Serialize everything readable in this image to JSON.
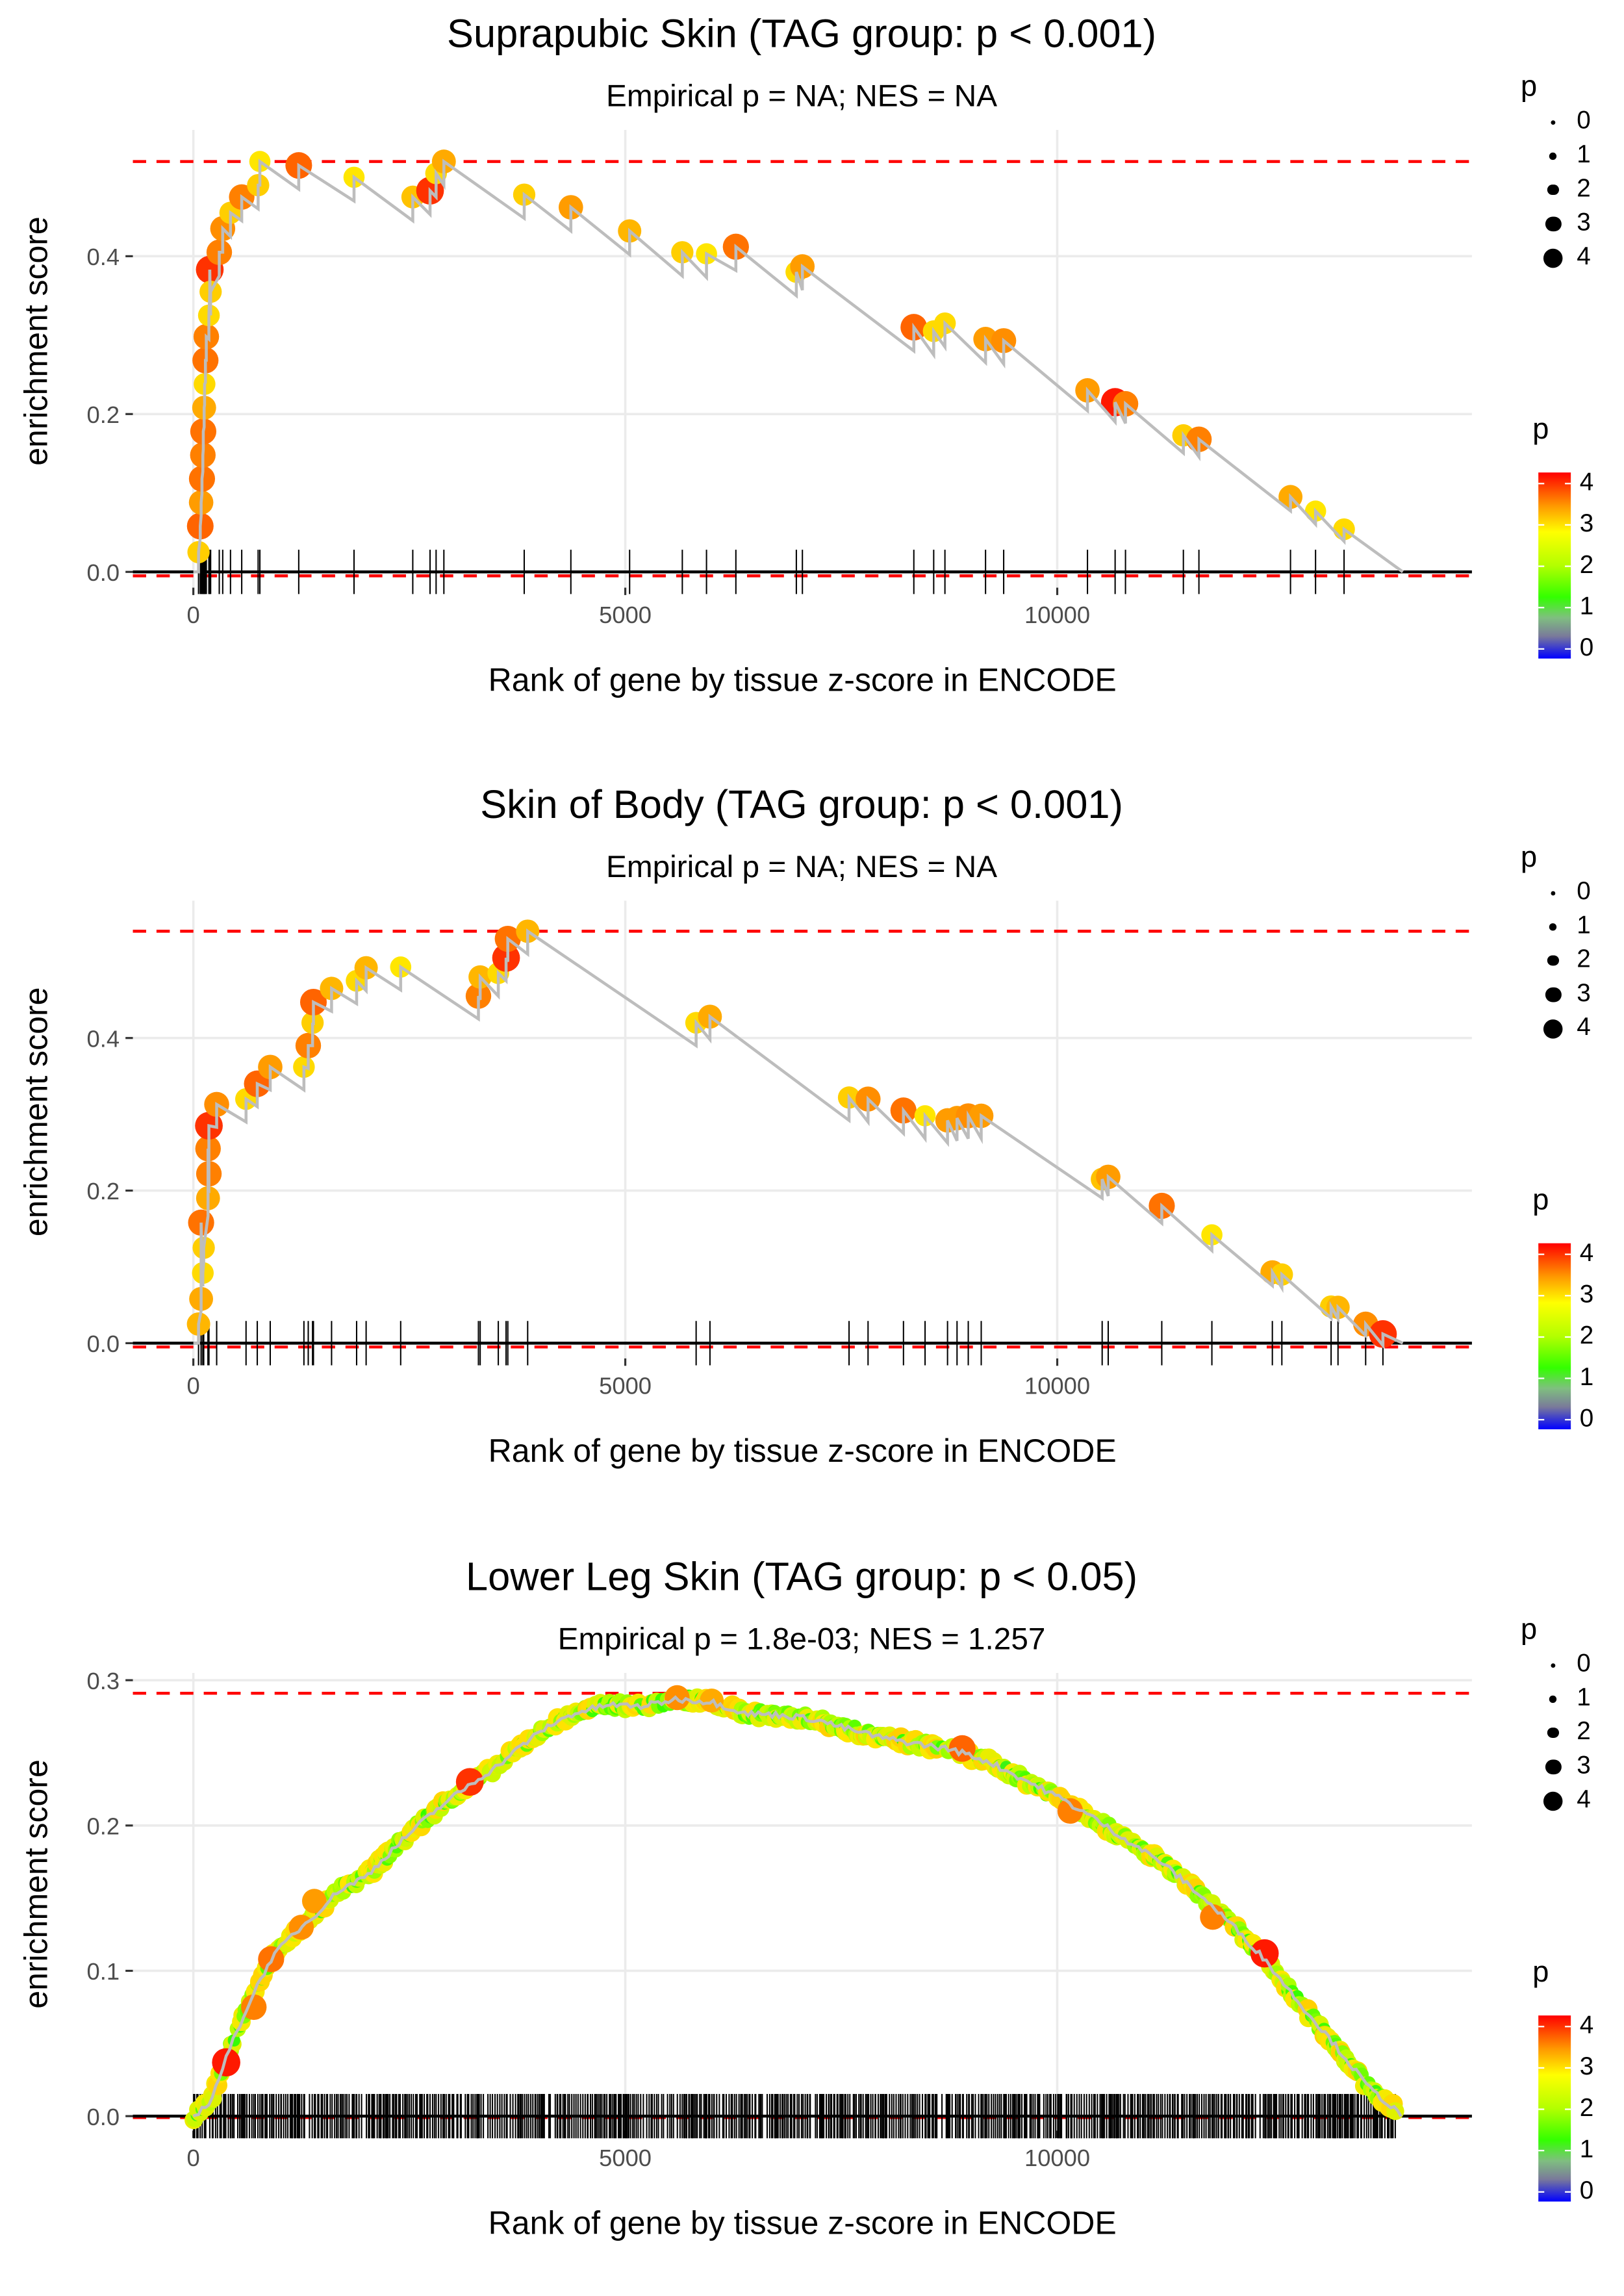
{
  "chart_data": [
    {
      "type": "line",
      "title": "Suprapubic Skin (TAG group: p < 0.001)",
      "subtitle": "Empirical p = NA; NES = NA",
      "xlabel": "Rank of gene by tissue z-score in ENCODE",
      "ylabel": "enrichment score",
      "xlim": [
        -700,
        14800
      ],
      "ylim": [
        -0.02,
        0.56
      ],
      "x_ticks": [
        0,
        5000,
        10000
      ],
      "x_tick_labels": [
        "0",
        "5000",
        "10000"
      ],
      "y_ticks": [
        0.0,
        0.2,
        0.4
      ],
      "y_tick_labels": [
        "0.0",
        "0.2",
        "0.4"
      ],
      "grid": true,
      "max_es_line": 0.52,
      "min_es_line": -0.005,
      "end_rank": 14000,
      "hits": [
        {
          "x": 60,
          "y": 0.025,
          "p": 3.0
        },
        {
          "x": 80,
          "y": 0.058,
          "p": 3.8
        },
        {
          "x": 90,
          "y": 0.088,
          "p": 3.4
        },
        {
          "x": 100,
          "y": 0.118,
          "p": 3.7
        },
        {
          "x": 110,
          "y": 0.148,
          "p": 3.6
        },
        {
          "x": 115,
          "y": 0.178,
          "p": 3.7
        },
        {
          "x": 125,
          "y": 0.208,
          "p": 3.3
        },
        {
          "x": 130,
          "y": 0.238,
          "p": 2.9
        },
        {
          "x": 140,
          "y": 0.268,
          "p": 3.7
        },
        {
          "x": 150,
          "y": 0.298,
          "p": 3.6
        },
        {
          "x": 180,
          "y": 0.325,
          "p": 2.9
        },
        {
          "x": 200,
          "y": 0.355,
          "p": 3.0
        },
        {
          "x": 190,
          "y": 0.383,
          "p": 4.0
        },
        {
          "x": 300,
          "y": 0.405,
          "p": 3.6
        },
        {
          "x": 340,
          "y": 0.435,
          "p": 3.5
        },
        {
          "x": 430,
          "y": 0.455,
          "p": 3.0
        },
        {
          "x": 560,
          "y": 0.475,
          "p": 3.6
        },
        {
          "x": 750,
          "y": 0.49,
          "p": 3.0
        },
        {
          "x": 770,
          "y": 0.52,
          "p": 2.8
        },
        {
          "x": 1220,
          "y": 0.515,
          "p": 3.8
        },
        {
          "x": 1860,
          "y": 0.5,
          "p": 2.8
        },
        {
          "x": 2540,
          "y": 0.475,
          "p": 3.1
        },
        {
          "x": 2740,
          "y": 0.483,
          "p": 4.0
        },
        {
          "x": 2810,
          "y": 0.505,
          "p": 2.9
        },
        {
          "x": 2900,
          "y": 0.52,
          "p": 3.3
        },
        {
          "x": 3830,
          "y": 0.478,
          "p": 3.0
        },
        {
          "x": 4370,
          "y": 0.462,
          "p": 3.4
        },
        {
          "x": 5050,
          "y": 0.432,
          "p": 3.2
        },
        {
          "x": 5660,
          "y": 0.405,
          "p": 3.0
        },
        {
          "x": 5940,
          "y": 0.403,
          "p": 2.8
        },
        {
          "x": 6280,
          "y": 0.412,
          "p": 3.7
        },
        {
          "x": 6980,
          "y": 0.38,
          "p": 2.9
        },
        {
          "x": 7050,
          "y": 0.387,
          "p": 3.4
        },
        {
          "x": 8340,
          "y": 0.31,
          "p": 3.8
        },
        {
          "x": 8570,
          "y": 0.305,
          "p": 2.9
        },
        {
          "x": 8700,
          "y": 0.315,
          "p": 2.9
        },
        {
          "x": 9170,
          "y": 0.295,
          "p": 3.4
        },
        {
          "x": 9380,
          "y": 0.293,
          "p": 3.5
        },
        {
          "x": 10350,
          "y": 0.23,
          "p": 3.4
        },
        {
          "x": 10670,
          "y": 0.215,
          "p": 4.1
        },
        {
          "x": 10790,
          "y": 0.213,
          "p": 3.6
        },
        {
          "x": 11460,
          "y": 0.173,
          "p": 3.0
        },
        {
          "x": 11640,
          "y": 0.168,
          "p": 3.6
        },
        {
          "x": 12700,
          "y": 0.095,
          "p": 3.3
        },
        {
          "x": 12990,
          "y": 0.077,
          "p": 2.8
        },
        {
          "x": 13320,
          "y": 0.054,
          "p": 2.9
        }
      ]
    },
    {
      "type": "line",
      "title": "Skin of Body (TAG group: p < 0.001)",
      "subtitle": "Empirical p = NA; NES = NA",
      "xlabel": "Rank of gene by tissue z-score in ENCODE",
      "ylabel": "enrichment score",
      "xlim": [
        -700,
        14800
      ],
      "ylim": [
        -0.02,
        0.58
      ],
      "x_ticks": [
        0,
        5000,
        10000
      ],
      "x_tick_labels": [
        "0",
        "5000",
        "10000"
      ],
      "y_ticks": [
        0.0,
        0.2,
        0.4
      ],
      "y_tick_labels": [
        "0.0",
        "0.2",
        "0.4"
      ],
      "grid": true,
      "max_es_line": 0.54,
      "min_es_line": -0.005,
      "end_rank": 14000,
      "hits": [
        {
          "x": 60,
          "y": 0.025,
          "p": 3.2
        },
        {
          "x": 90,
          "y": 0.058,
          "p": 3.3
        },
        {
          "x": 110,
          "y": 0.092,
          "p": 2.9
        },
        {
          "x": 120,
          "y": 0.125,
          "p": 3.0
        },
        {
          "x": 90,
          "y": 0.158,
          "p": 3.7
        },
        {
          "x": 170,
          "y": 0.19,
          "p": 3.3
        },
        {
          "x": 180,
          "y": 0.222,
          "p": 3.6
        },
        {
          "x": 170,
          "y": 0.255,
          "p": 3.6
        },
        {
          "x": 180,
          "y": 0.285,
          "p": 4.0
        },
        {
          "x": 270,
          "y": 0.313,
          "p": 3.5
        },
        {
          "x": 610,
          "y": 0.32,
          "p": 2.9
        },
        {
          "x": 740,
          "y": 0.34,
          "p": 3.8
        },
        {
          "x": 890,
          "y": 0.362,
          "p": 3.4
        },
        {
          "x": 1280,
          "y": 0.362,
          "p": 2.9
        },
        {
          "x": 1330,
          "y": 0.39,
          "p": 3.6
        },
        {
          "x": 1380,
          "y": 0.42,
          "p": 3.0
        },
        {
          "x": 1390,
          "y": 0.447,
          "p": 3.8
        },
        {
          "x": 1600,
          "y": 0.465,
          "p": 3.2
        },
        {
          "x": 1890,
          "y": 0.475,
          "p": 2.9
        },
        {
          "x": 2000,
          "y": 0.492,
          "p": 3.2
        },
        {
          "x": 2400,
          "y": 0.493,
          "p": 2.8
        },
        {
          "x": 3300,
          "y": 0.455,
          "p": 3.6
        },
        {
          "x": 3320,
          "y": 0.48,
          "p": 3.2
        },
        {
          "x": 3530,
          "y": 0.485,
          "p": 2.9
        },
        {
          "x": 3620,
          "y": 0.505,
          "p": 4.0
        },
        {
          "x": 3640,
          "y": 0.53,
          "p": 3.7
        },
        {
          "x": 3870,
          "y": 0.54,
          "p": 3.2
        },
        {
          "x": 5820,
          "y": 0.42,
          "p": 2.9
        },
        {
          "x": 5980,
          "y": 0.428,
          "p": 3.3
        },
        {
          "x": 7590,
          "y": 0.322,
          "p": 3.0
        },
        {
          "x": 7810,
          "y": 0.32,
          "p": 3.5
        },
        {
          "x": 8220,
          "y": 0.305,
          "p": 3.7
        },
        {
          "x": 8470,
          "y": 0.298,
          "p": 2.8
        },
        {
          "x": 8730,
          "y": 0.292,
          "p": 3.4
        },
        {
          "x": 8840,
          "y": 0.295,
          "p": 3.4
        },
        {
          "x": 8970,
          "y": 0.298,
          "p": 3.5
        },
        {
          "x": 9120,
          "y": 0.298,
          "p": 3.4
        },
        {
          "x": 10520,
          "y": 0.215,
          "p": 3.1
        },
        {
          "x": 10590,
          "y": 0.218,
          "p": 3.4
        },
        {
          "x": 11210,
          "y": 0.18,
          "p": 3.7
        },
        {
          "x": 11790,
          "y": 0.142,
          "p": 2.8
        },
        {
          "x": 12490,
          "y": 0.093,
          "p": 3.3
        },
        {
          "x": 12600,
          "y": 0.09,
          "p": 3.0
        },
        {
          "x": 13170,
          "y": 0.048,
          "p": 3.0
        },
        {
          "x": 13250,
          "y": 0.047,
          "p": 3.2
        },
        {
          "x": 13570,
          "y": 0.025,
          "p": 3.5
        },
        {
          "x": 13770,
          "y": 0.012,
          "p": 4.0
        }
      ]
    },
    {
      "type": "line",
      "title": "Lower Leg Skin (TAG group: p < 0.05)",
      "subtitle": "Empirical p = 1.8e-03; NES = 1.257",
      "xlabel": "Rank of gene by tissue z-score in ENCODE",
      "ylabel": "enrichment score",
      "xlim": [
        -700,
        14800
      ],
      "ylim": [
        -0.01,
        0.305
      ],
      "x_ticks": [
        0,
        5000,
        10000
      ],
      "x_tick_labels": [
        "0",
        "5000",
        "10000"
      ],
      "y_ticks": [
        0.0,
        0.1,
        0.2,
        0.3
      ],
      "y_tick_labels": [
        "0.0",
        "0.1",
        "0.2",
        "0.3"
      ],
      "grid": true,
      "max_es_line": 0.291,
      "min_es_line": -0.001,
      "end_rank": 14000,
      "curve": [
        [
          0,
          0.0
        ],
        [
          200,
          0.01
        ],
        [
          350,
          0.035
        ],
        [
          500,
          0.058
        ],
        [
          700,
          0.085
        ],
        [
          900,
          0.108
        ],
        [
          1100,
          0.122
        ],
        [
          1400,
          0.138
        ],
        [
          1700,
          0.156
        ],
        [
          2000,
          0.165
        ],
        [
          2300,
          0.183
        ],
        [
          2600,
          0.2
        ],
        [
          2900,
          0.215
        ],
        [
          3200,
          0.228
        ],
        [
          3500,
          0.24
        ],
        [
          3800,
          0.255
        ],
        [
          4100,
          0.268
        ],
        [
          4400,
          0.277
        ],
        [
          4800,
          0.283
        ],
        [
          5200,
          0.282
        ],
        [
          5600,
          0.287
        ],
        [
          6000,
          0.285
        ],
        [
          6400,
          0.277
        ],
        [
          6800,
          0.276
        ],
        [
          7200,
          0.273
        ],
        [
          7600,
          0.266
        ],
        [
          8000,
          0.26
        ],
        [
          8400,
          0.256
        ],
        [
          8800,
          0.252
        ],
        [
          9200,
          0.244
        ],
        [
          9600,
          0.232
        ],
        [
          10000,
          0.22
        ],
        [
          10400,
          0.206
        ],
        [
          10800,
          0.19
        ],
        [
          11200,
          0.175
        ],
        [
          11600,
          0.155
        ],
        [
          12000,
          0.133
        ],
        [
          12400,
          0.108
        ],
        [
          12800,
          0.078
        ],
        [
          13200,
          0.05
        ],
        [
          13600,
          0.02
        ],
        [
          14000,
          0.0
        ]
      ],
      "highlighted_hits": [
        {
          "x": 380,
          "y": 0.037,
          "p": 4.1
        },
        {
          "x": 700,
          "y": 0.075,
          "p": 3.6
        },
        {
          "x": 900,
          "y": 0.108,
          "p": 3.7
        },
        {
          "x": 1250,
          "y": 0.13,
          "p": 3.5
        },
        {
          "x": 1400,
          "y": 0.148,
          "p": 3.4
        },
        {
          "x": 3200,
          "y": 0.23,
          "p": 4.0
        },
        {
          "x": 5600,
          "y": 0.288,
          "p": 3.5
        },
        {
          "x": 6000,
          "y": 0.286,
          "p": 3.3
        },
        {
          "x": 8900,
          "y": 0.253,
          "p": 3.8
        },
        {
          "x": 10150,
          "y": 0.21,
          "p": 3.6
        },
        {
          "x": 11800,
          "y": 0.137,
          "p": 3.6
        },
        {
          "x": 12400,
          "y": 0.112,
          "p": 4.1
        }
      ],
      "hit_density": "dense (hundreds of hits spanning ranks 0–13900)"
    }
  ],
  "legends": {
    "size_title": "p",
    "size_levels": [
      "0",
      "1",
      "2",
      "3",
      "4"
    ],
    "color_title": "p",
    "color_labels": [
      "4",
      "3",
      "2",
      "1",
      "0"
    ],
    "color_scale": [
      "#0000ff",
      "#808080",
      "#33ff00",
      "#ffff00",
      "#ff9900",
      "#ff0000"
    ]
  }
}
